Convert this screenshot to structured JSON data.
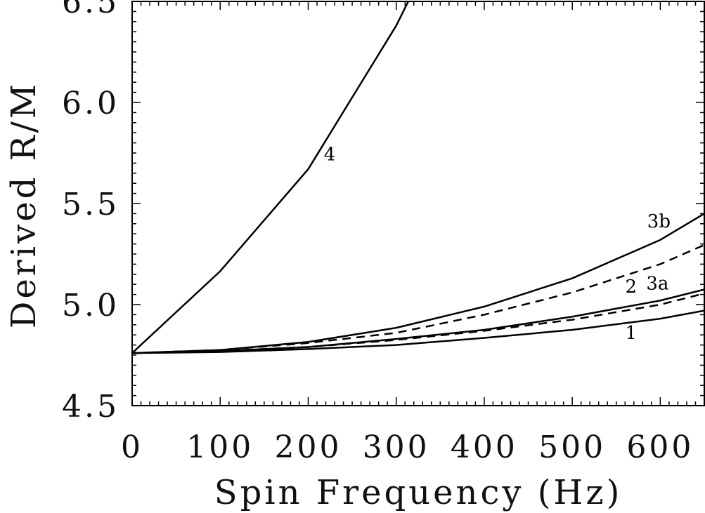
{
  "chart_data": {
    "type": "line",
    "title": "",
    "xlabel": "Spin Frequency (Hz)",
    "ylabel": "Derived R/M",
    "xlim": [
      0,
      650
    ],
    "ylim": [
      4.5,
      6.5
    ],
    "x_ticks": [
      0,
      100,
      200,
      300,
      400,
      500,
      600
    ],
    "x_tick_labels": [
      "0",
      "100",
      "200",
      "300",
      "400",
      "500",
      "600"
    ],
    "y_ticks": [
      4.5,
      5.0,
      5.5,
      6.0,
      6.5
    ],
    "y_tick_labels": [
      "4.5",
      "5.0",
      "5.5",
      "6.0",
      "6.5"
    ],
    "grid": false,
    "series": [
      {
        "name": "1",
        "style": "solid",
        "label_position": "below",
        "points": [
          [
            0,
            4.76
          ],
          [
            100,
            4.765
          ],
          [
            200,
            4.78
          ],
          [
            300,
            4.8
          ],
          [
            400,
            4.835
          ],
          [
            500,
            4.875
          ],
          [
            600,
            4.93
          ],
          [
            650,
            4.97
          ]
        ]
      },
      {
        "name": "2",
        "style": "solid",
        "label_position": "above",
        "points": [
          [
            0,
            4.76
          ],
          [
            100,
            4.77
          ],
          [
            200,
            4.79
          ],
          [
            300,
            4.83
          ],
          [
            400,
            4.875
          ],
          [
            500,
            4.94
          ],
          [
            600,
            5.02
          ],
          [
            650,
            5.075
          ]
        ]
      },
      {
        "name": "3a",
        "style": "dashed",
        "label_position": "below",
        "points": [
          [
            0,
            4.76
          ],
          [
            100,
            4.775
          ],
          [
            200,
            4.81
          ],
          [
            300,
            4.86
          ],
          [
            400,
            4.95
          ],
          [
            500,
            5.06
          ],
          [
            600,
            5.2
          ],
          [
            650,
            5.295
          ]
        ]
      },
      {
        "name": "3b",
        "style": "solid",
        "label_position": "above",
        "points": [
          [
            0,
            4.76
          ],
          [
            100,
            4.775
          ],
          [
            200,
            4.815
          ],
          [
            300,
            4.885
          ],
          [
            400,
            4.99
          ],
          [
            500,
            5.13
          ],
          [
            600,
            5.32
          ],
          [
            650,
            5.45
          ]
        ]
      },
      {
        "name": "4",
        "style": "solid",
        "label_position": "right",
        "points": [
          [
            0,
            4.76
          ],
          [
            100,
            5.165
          ],
          [
            200,
            5.67
          ],
          [
            300,
            6.38
          ],
          [
            316,
            6.52
          ]
        ]
      },
      {
        "name": "",
        "style": "dashed",
        "label_position": "none",
        "points": [
          [
            0,
            4.76
          ],
          [
            100,
            4.77
          ],
          [
            200,
            4.79
          ],
          [
            300,
            4.825
          ],
          [
            400,
            4.87
          ],
          [
            500,
            4.925
          ],
          [
            600,
            5.0
          ],
          [
            650,
            5.055
          ]
        ]
      }
    ]
  }
}
